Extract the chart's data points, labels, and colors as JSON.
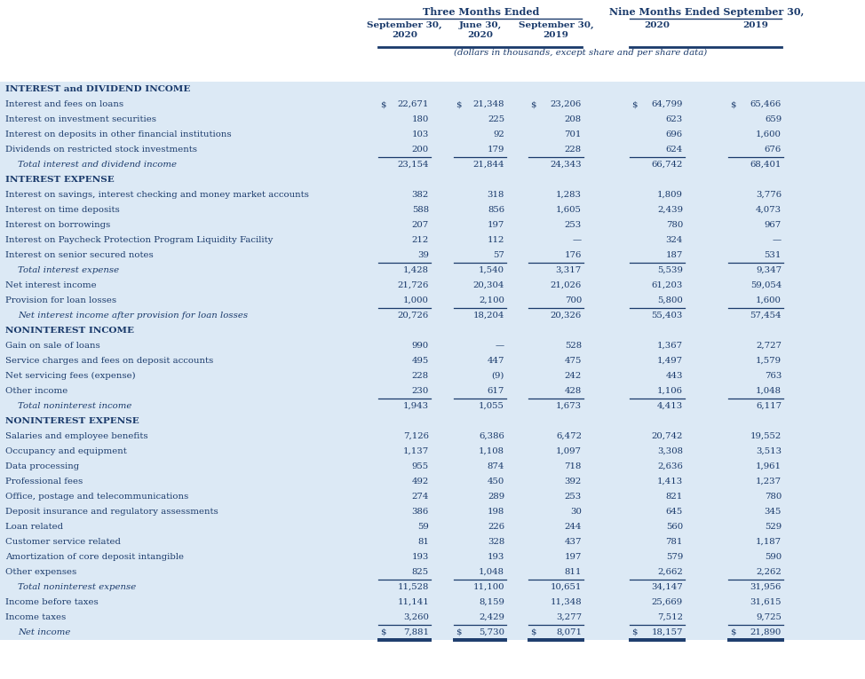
{
  "title_three_months": "Three Months Ended",
  "title_nine_months": "Nine Months Ended September 30,",
  "col_headers": [
    "September 30,\n2020",
    "June 30,\n2020",
    "September 30,\n2019",
    "2020",
    "2019"
  ],
  "subtitle": "(dollars in thousands, except share and per share data)",
  "bg_light": "#dce9f5",
  "text_color": "#1a3a6b",
  "rows": [
    {
      "label": "INTEREST and DIVIDEND INCOME",
      "type": "section",
      "values": []
    },
    {
      "label": "Interest and fees on loans",
      "type": "data_dollar",
      "values": [
        "22,671",
        "21,348",
        "23,206",
        "64,799",
        "65,466"
      ]
    },
    {
      "label": "Interest on investment securities",
      "type": "data",
      "values": [
        "180",
        "225",
        "208",
        "623",
        "659"
      ]
    },
    {
      "label": "Interest on deposits in other financial institutions",
      "type": "data",
      "values": [
        "103",
        "92",
        "701",
        "696",
        "1,600"
      ]
    },
    {
      "label": "Dividends on restricted stock investments",
      "type": "data_underline",
      "values": [
        "200",
        "179",
        "228",
        "624",
        "676"
      ]
    },
    {
      "label": "   Total interest and dividend income",
      "type": "total",
      "values": [
        "23,154",
        "21,844",
        "24,343",
        "66,742",
        "68,401"
      ]
    },
    {
      "label": "INTEREST EXPENSE",
      "type": "section",
      "values": []
    },
    {
      "label": "Interest on savings, interest checking and money market accounts",
      "type": "data",
      "values": [
        "382",
        "318",
        "1,283",
        "1,809",
        "3,776"
      ]
    },
    {
      "label": "Interest on time deposits",
      "type": "data",
      "values": [
        "588",
        "856",
        "1,605",
        "2,439",
        "4,073"
      ]
    },
    {
      "label": "Interest on borrowings",
      "type": "data",
      "values": [
        "207",
        "197",
        "253",
        "780",
        "967"
      ]
    },
    {
      "label": "Interest on Paycheck Protection Program Liquidity Facility",
      "type": "data",
      "values": [
        "212",
        "112",
        "—",
        "324",
        "—"
      ]
    },
    {
      "label": "Interest on senior secured notes",
      "type": "data_underline",
      "values": [
        "39",
        "57",
        "176",
        "187",
        "531"
      ]
    },
    {
      "label": "   Total interest expense",
      "type": "total",
      "values": [
        "1,428",
        "1,540",
        "3,317",
        "5,539",
        "9,347"
      ]
    },
    {
      "label": "Net interest income",
      "type": "data",
      "values": [
        "21,726",
        "20,304",
        "21,026",
        "61,203",
        "59,054"
      ]
    },
    {
      "label": "Provision for loan losses",
      "type": "data_underline",
      "values": [
        "1,000",
        "2,100",
        "700",
        "5,800",
        "1,600"
      ]
    },
    {
      "label": "Net interest income after provision for loan losses",
      "type": "total",
      "values": [
        "20,726",
        "18,204",
        "20,326",
        "55,403",
        "57,454"
      ]
    },
    {
      "label": "NONINTEREST INCOME",
      "type": "section",
      "values": []
    },
    {
      "label": "Gain on sale of loans",
      "type": "data",
      "values": [
        "990",
        "—",
        "528",
        "1,367",
        "2,727"
      ]
    },
    {
      "label": "Service charges and fees on deposit accounts",
      "type": "data",
      "values": [
        "495",
        "447",
        "475",
        "1,497",
        "1,579"
      ]
    },
    {
      "label": "Net servicing fees (expense)",
      "type": "data",
      "values": [
        "228",
        "(9)",
        "242",
        "443",
        "763"
      ]
    },
    {
      "label": "Other income",
      "type": "data_underline",
      "values": [
        "230",
        "617",
        "428",
        "1,106",
        "1,048"
      ]
    },
    {
      "label": "   Total noninterest income",
      "type": "total",
      "values": [
        "1,943",
        "1,055",
        "1,673",
        "4,413",
        "6,117"
      ]
    },
    {
      "label": "NONINTEREST EXPENSE",
      "type": "section",
      "values": []
    },
    {
      "label": "Salaries and employee benefits",
      "type": "data",
      "values": [
        "7,126",
        "6,386",
        "6,472",
        "20,742",
        "19,552"
      ]
    },
    {
      "label": "Occupancy and equipment",
      "type": "data",
      "values": [
        "1,137",
        "1,108",
        "1,097",
        "3,308",
        "3,513"
      ]
    },
    {
      "label": "Data processing",
      "type": "data",
      "values": [
        "955",
        "874",
        "718",
        "2,636",
        "1,961"
      ]
    },
    {
      "label": "Professional fees",
      "type": "data",
      "values": [
        "492",
        "450",
        "392",
        "1,413",
        "1,237"
      ]
    },
    {
      "label": "Office, postage and telecommunications",
      "type": "data",
      "values": [
        "274",
        "289",
        "253",
        "821",
        "780"
      ]
    },
    {
      "label": "Deposit insurance and regulatory assessments",
      "type": "data",
      "values": [
        "386",
        "198",
        "30",
        "645",
        "345"
      ]
    },
    {
      "label": "Loan related",
      "type": "data",
      "values": [
        "59",
        "226",
        "244",
        "560",
        "529"
      ]
    },
    {
      "label": "Customer service related",
      "type": "data",
      "values": [
        "81",
        "328",
        "437",
        "781",
        "1,187"
      ]
    },
    {
      "label": "Amortization of core deposit intangible",
      "type": "data",
      "values": [
        "193",
        "193",
        "197",
        "579",
        "590"
      ]
    },
    {
      "label": "Other expenses",
      "type": "data_underline",
      "values": [
        "825",
        "1,048",
        "811",
        "2,662",
        "2,262"
      ]
    },
    {
      "label": "   Total noninterest expense",
      "type": "total",
      "values": [
        "11,528",
        "11,100",
        "10,651",
        "34,147",
        "31,956"
      ]
    },
    {
      "label": "Income before taxes",
      "type": "data",
      "values": [
        "11,141",
        "8,159",
        "11,348",
        "25,669",
        "31,615"
      ]
    },
    {
      "label": "Income taxes",
      "type": "data_underline",
      "values": [
        "3,260",
        "2,429",
        "3,277",
        "7,512",
        "9,725"
      ]
    },
    {
      "label": "Net income",
      "type": "final_dollar",
      "values": [
        "7,881",
        "5,730",
        "8,071",
        "18,157",
        "21,890"
      ]
    }
  ]
}
